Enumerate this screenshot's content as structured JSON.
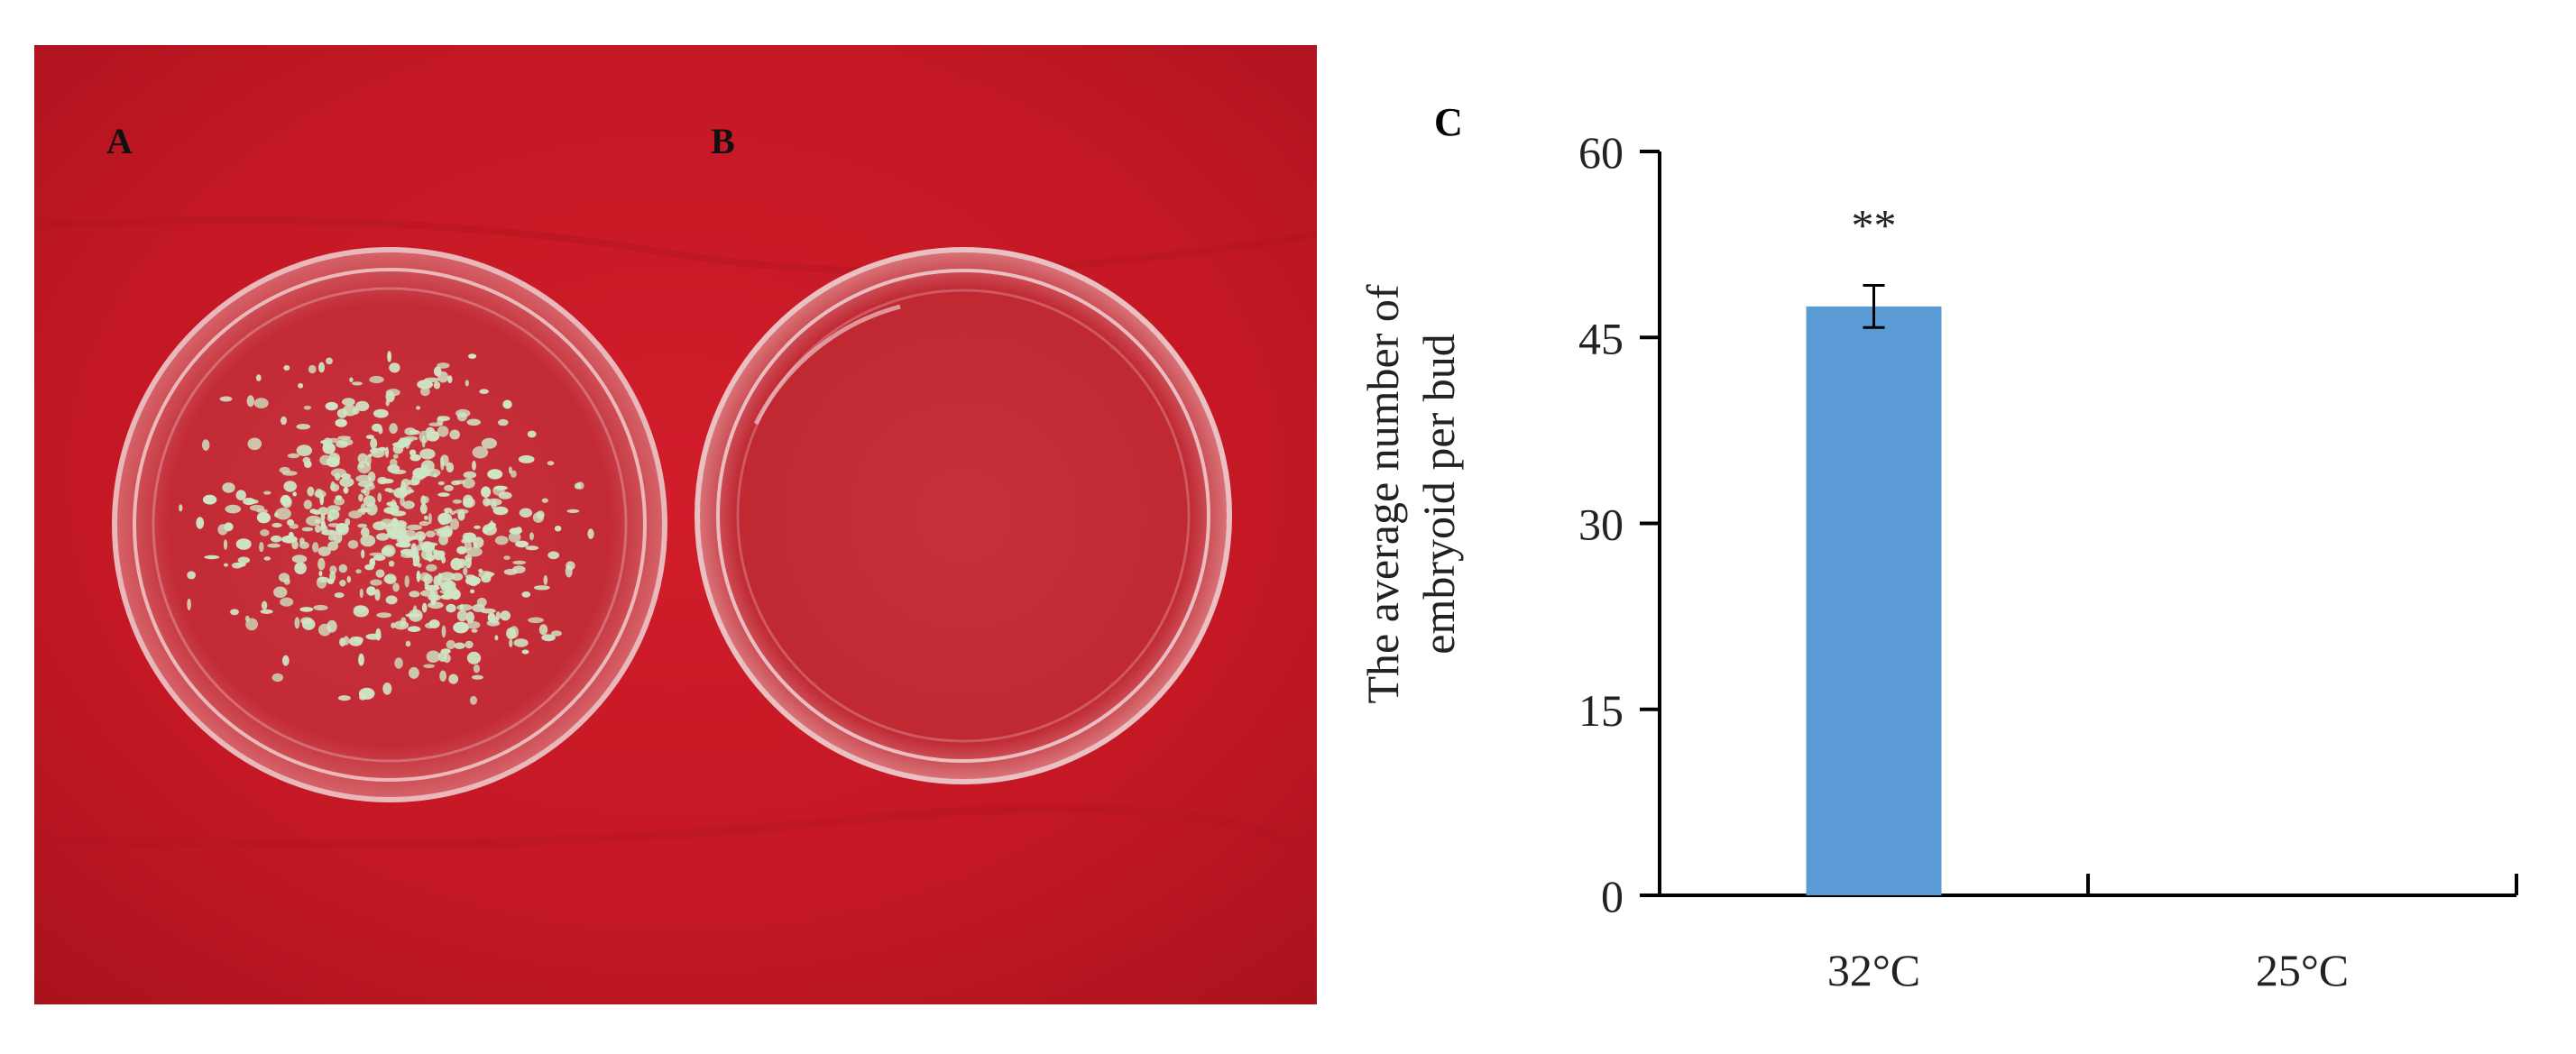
{
  "panels": {
    "photo_a": {
      "label": "A",
      "description_icon": "petri-dish-with-embryoids"
    },
    "photo_b": {
      "label": "B",
      "description_icon": "empty-petri-dish"
    },
    "chart": {
      "label": "C"
    }
  },
  "colors": {
    "background_cloth": "#c41824",
    "bar": "#5b9bd5",
    "axis": "#000000",
    "embryoid": "#cfe6c6"
  },
  "chart_data": {
    "type": "bar",
    "categories": [
      "32°C",
      "25°C"
    ],
    "series": [
      {
        "values": [
          47.5,
          0
        ],
        "error": [
          1.7,
          0
        ]
      }
    ],
    "ylabel_line1": "The  average number of",
    "ylabel_line2": "embryoid per bud",
    "xlabel": "",
    "ylim": [
      0,
      60
    ],
    "yticks": [
      0,
      15,
      30,
      45,
      60
    ],
    "ytick_labels": [
      "0",
      "15",
      "30",
      "45",
      "60"
    ],
    "annotations": [
      {
        "category": "32°C",
        "text": "**"
      }
    ],
    "grid": false,
    "legend": "none"
  }
}
